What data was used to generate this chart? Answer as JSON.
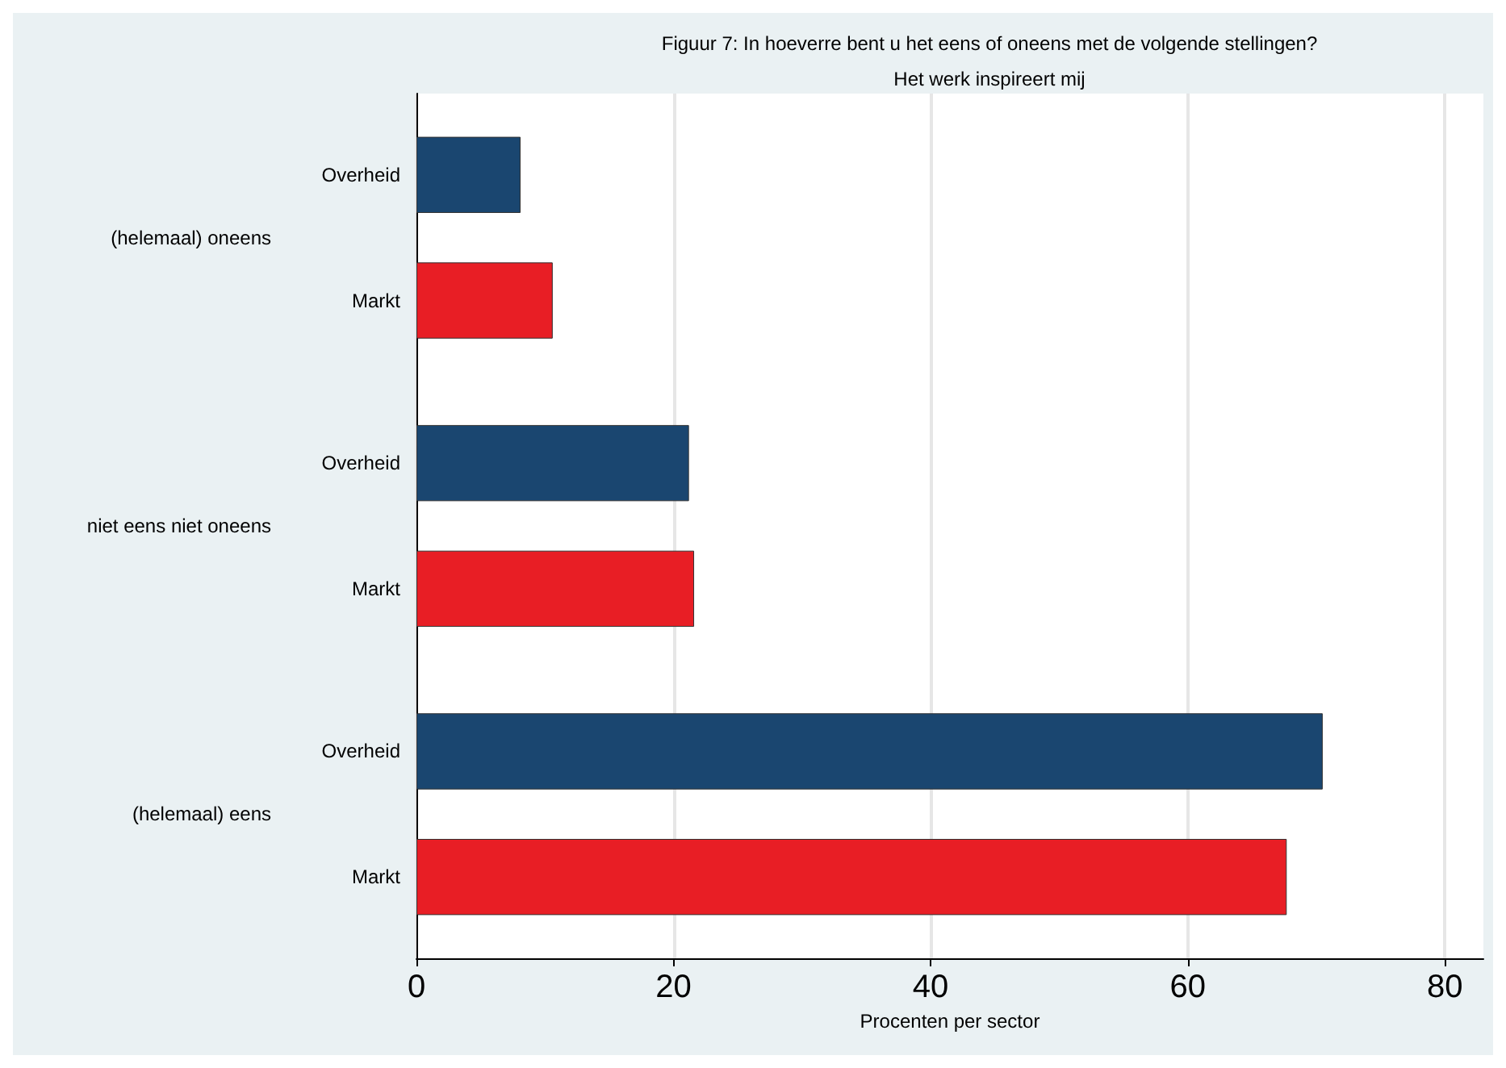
{
  "chart_data": {
    "type": "bar",
    "orientation": "horizontal",
    "title": "Figuur 7: In hoeverre bent u het eens of oneens met de volgende stellingen?",
    "subtitle": "Het werk inspireert mij",
    "categories": [
      "(helemaal) oneens",
      "niet eens niet oneens",
      "(helemaal) eens"
    ],
    "series": [
      {
        "name": "Overheid",
        "color": "#1a4670",
        "values": [
          8.1,
          21.2,
          70.5
        ]
      },
      {
        "name": "Markt",
        "color": "#e81e25",
        "values": [
          10.6,
          21.6,
          67.7
        ]
      }
    ],
    "xlabel": "Procenten per sector",
    "xlim": [
      0,
      83
    ],
    "xticks": [
      0,
      20,
      40,
      60,
      80
    ],
    "grid": "x"
  }
}
